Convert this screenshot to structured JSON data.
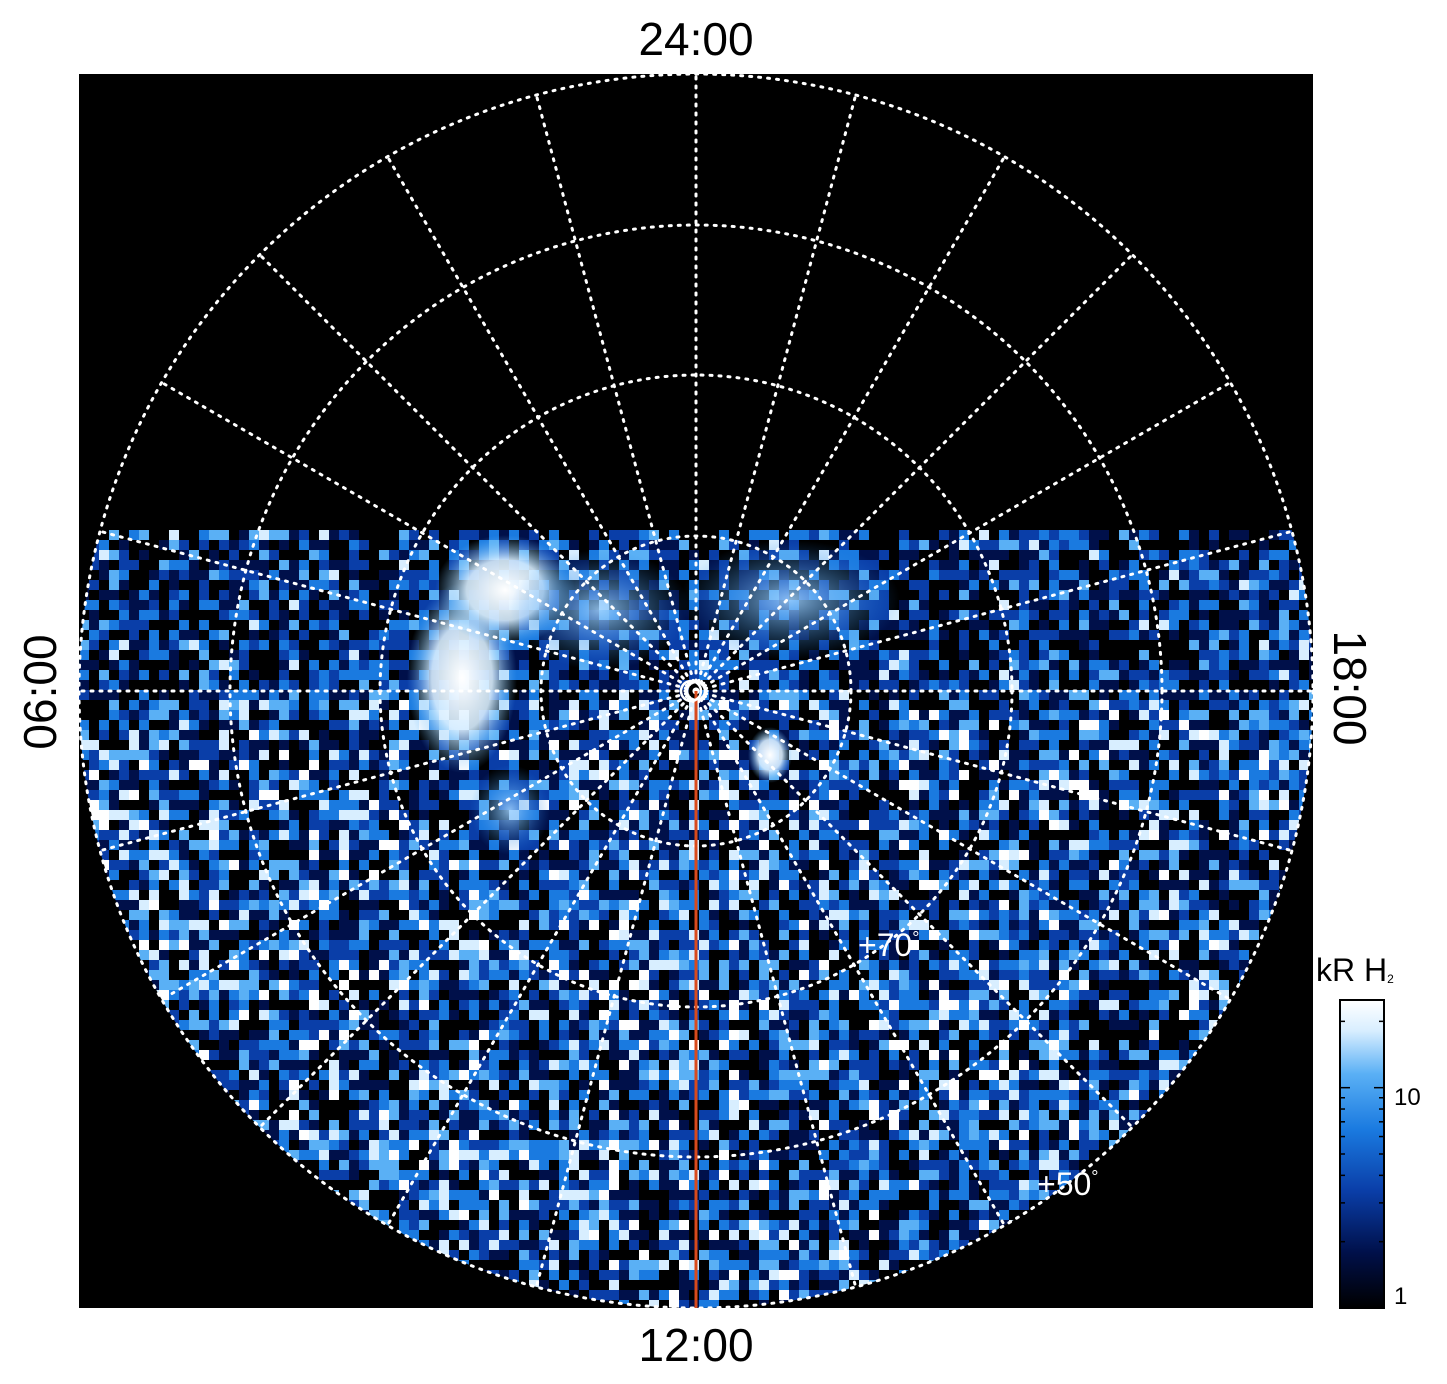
{
  "figure": {
    "time_labels": {
      "top": "24:00",
      "bottom": "12:00",
      "left": "06:00",
      "right": "18:00"
    },
    "latitude_labels": [
      {
        "deg": "+70",
        "unit": "°"
      },
      {
        "deg": "+50",
        "unit": "°"
      }
    ],
    "colorbar": {
      "title": "kR H",
      "title_sub": "2",
      "ticks": [
        "10",
        "1"
      ],
      "scale": "log",
      "colors": [
        "#000000",
        "#00104a",
        "#0a3ea8",
        "#1a7ae0",
        "#5ab0f5",
        "#d8eeff",
        "#ffffff"
      ]
    },
    "colors": {
      "background": "#000000",
      "grid": "#ffffff",
      "meridian_line": "#d84a1c"
    }
  }
}
